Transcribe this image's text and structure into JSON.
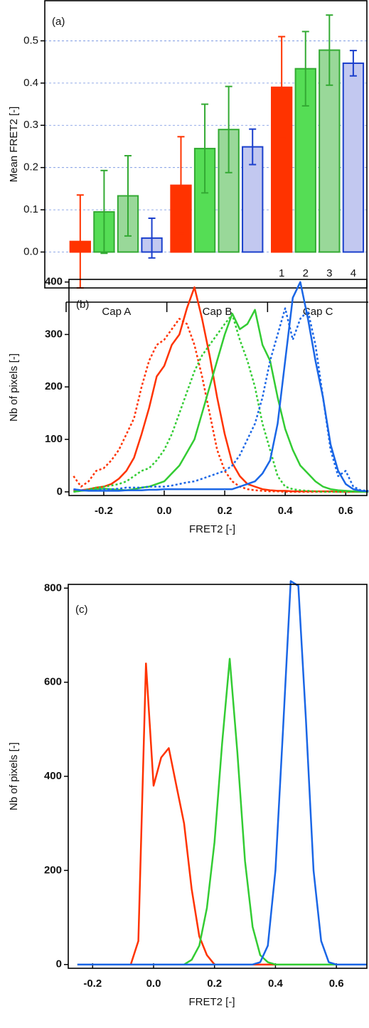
{
  "chart_data": [
    {
      "type": "bar",
      "annotation": "(a)",
      "ylabel": "Mean FRET2 [-]",
      "categories": [
        "Cap A",
        "Cap B",
        "Cap C"
      ],
      "series": [
        {
          "name": "1",
          "color": "#ff3300",
          "edgecolor": "#ff3300",
          "values": [
            0.025,
            0.158,
            0.39
          ],
          "errors": [
            0.11,
            0.115,
            0.12
          ]
        },
        {
          "name": "2",
          "color": "#55dd55",
          "edgecolor": "#33aa33",
          "values": [
            0.095,
            0.245,
            0.434
          ],
          "errors": [
            0.098,
            0.105,
            0.088
          ]
        },
        {
          "name": "3",
          "color": "#99d899",
          "edgecolor": "#33aa33",
          "values": [
            0.133,
            0.29,
            0.478
          ],
          "errors": [
            0.095,
            0.102,
            0.083
          ]
        },
        {
          "name": "4",
          "color": "#c2c8f0",
          "edgecolor": "#1a3fcc",
          "values": [
            0.033,
            0.249,
            0.447
          ],
          "errors": [
            0.047,
            0.042,
            0.03
          ]
        }
      ],
      "ylim": [
        -0.085,
        0.595
      ],
      "yticks": [
        {
          "value": 0,
          "label": "0.0"
        },
        0.1,
        0.2,
        0.3,
        0.4,
        0.5
      ],
      "grid": true
    },
    {
      "type": "line",
      "annotation": "(b)",
      "xlabel": "FRET2 [-]",
      "ylabel": "Nb of pixels [-]",
      "x": [
        -0.3,
        -0.275,
        -0.25,
        -0.225,
        -0.2,
        -0.175,
        -0.15,
        -0.125,
        -0.1,
        -0.075,
        -0.05,
        -0.025,
        0,
        0.025,
        0.05,
        0.075,
        0.1,
        0.125,
        0.15,
        0.175,
        0.2,
        0.225,
        0.25,
        0.275,
        0.3,
        0.325,
        0.35,
        0.375,
        0.4,
        0.425,
        0.45,
        0.475,
        0.5,
        0.525,
        0.55,
        0.575,
        0.6,
        0.625,
        0.65,
        0.675
      ],
      "series": [
        {
          "color": "#ff3300",
          "style": "solid",
          "values": [
            2,
            3,
            5,
            8,
            10,
            15,
            25,
            40,
            65,
            110,
            160,
            220,
            240,
            280,
            300,
            350,
            390,
            330,
            260,
            180,
            110,
            55,
            30,
            15,
            10,
            5,
            3,
            2,
            2,
            1,
            1,
            1,
            1,
            1,
            1,
            0,
            0,
            0,
            0,
            0
          ]
        },
        {
          "color": "#ff3300",
          "style": "dotted",
          "values": [
            30,
            10,
            20,
            40,
            45,
            60,
            80,
            110,
            140,
            200,
            250,
            280,
            290,
            310,
            330,
            320,
            280,
            220,
            150,
            80,
            40,
            20,
            10,
            5,
            3,
            2,
            1,
            1,
            0,
            0,
            0,
            0,
            0,
            0,
            0,
            0,
            0,
            0,
            0,
            0
          ]
        },
        {
          "color": "#33cc33",
          "style": "solid",
          "values": [
            0,
            2,
            3,
            5,
            6,
            5,
            4,
            3,
            5,
            8,
            10,
            15,
            20,
            35,
            50,
            75,
            100,
            150,
            200,
            250,
            300,
            340,
            310,
            320,
            347,
            280,
            250,
            180,
            120,
            80,
            50,
            35,
            20,
            10,
            5,
            3,
            2,
            1,
            0,
            0
          ]
        },
        {
          "color": "#33cc33",
          "style": "dotted",
          "values": [
            0,
            2,
            5,
            8,
            10,
            12,
            15,
            20,
            30,
            40,
            45,
            60,
            80,
            110,
            150,
            190,
            230,
            260,
            280,
            300,
            320,
            338,
            290,
            250,
            200,
            130,
            80,
            30,
            10,
            5,
            3,
            2,
            1,
            0,
            0,
            0,
            0,
            0,
            0,
            0
          ]
        },
        {
          "color": "#1a66e6",
          "style": "solid",
          "values": [
            5,
            3,
            2,
            2,
            2,
            2,
            2,
            3,
            3,
            3,
            4,
            4,
            5,
            5,
            5,
            5,
            5,
            5,
            5,
            5,
            5,
            5,
            10,
            15,
            20,
            35,
            60,
            130,
            250,
            370,
            400,
            330,
            250,
            180,
            90,
            40,
            15,
            5,
            2,
            1
          ]
        },
        {
          "color": "#1a66e6",
          "style": "dotted",
          "values": [
            5,
            3,
            3,
            3,
            5,
            5,
            6,
            8,
            8,
            8,
            10,
            10,
            10,
            12,
            15,
            18,
            20,
            25,
            30,
            35,
            40,
            50,
            70,
            100,
            130,
            180,
            250,
            300,
            350,
            290,
            330,
            345,
            280,
            180,
            80,
            30,
            40,
            10,
            3,
            2
          ]
        }
      ],
      "xlim": [
        -0.315,
        0.67
      ],
      "xticks": [
        -0.2,
        {
          "value": 0,
          "label": "0.0"
        },
        0.2,
        0.4,
        0.6
      ],
      "ylim": [
        -7,
        405
      ],
      "yticks": [
        0,
        100,
        200,
        300,
        400
      ]
    },
    {
      "type": "line",
      "annotation": "(c)",
      "xlabel": "FRET2 [-]",
      "ylabel": "Nb of pixels [-]",
      "x": [
        -0.25,
        -0.225,
        -0.2,
        -0.175,
        -0.15,
        -0.125,
        -0.1,
        -0.075,
        -0.05,
        -0.025,
        0,
        0.025,
        0.05,
        0.075,
        0.1,
        0.125,
        0.15,
        0.175,
        0.2,
        0.225,
        0.25,
        0.275,
        0.3,
        0.325,
        0.35,
        0.375,
        0.4,
        0.425,
        0.45,
        0.475,
        0.5,
        0.525,
        0.55,
        0.575,
        0.6,
        0.625,
        0.65,
        0.675,
        0.7
      ],
      "series": [
        {
          "color": "#ff3300",
          "style": "solid",
          "values": [
            0,
            0,
            0,
            0,
            0,
            0,
            0,
            0,
            50,
            640,
            380,
            440,
            460,
            380,
            300,
            160,
            60,
            20,
            0,
            0,
            0,
            0,
            0,
            0,
            0,
            0,
            0,
            0,
            0,
            0,
            0,
            0,
            0,
            0,
            0,
            0,
            0,
            0,
            0
          ]
        },
        {
          "color": "#33cc33",
          "style": "solid",
          "values": [
            0,
            0,
            0,
            0,
            0,
            0,
            0,
            0,
            0,
            0,
            0,
            0,
            0,
            0,
            0,
            10,
            40,
            120,
            260,
            470,
            650,
            450,
            220,
            80,
            20,
            5,
            0,
            0,
            0,
            0,
            0,
            0,
            0,
            0,
            0,
            0,
            0,
            0,
            0
          ]
        },
        {
          "color": "#1a66e6",
          "style": "solid",
          "values": [
            0,
            0,
            0,
            0,
            0,
            0,
            0,
            0,
            0,
            0,
            0,
            0,
            0,
            0,
            0,
            0,
            0,
            0,
            0,
            0,
            0,
            0,
            0,
            0,
            5,
            40,
            200,
            500,
            815,
            805,
            520,
            200,
            50,
            5,
            0,
            0,
            0,
            0,
            0
          ]
        }
      ],
      "xlim": [
        -0.28,
        0.7
      ],
      "xticks": [
        -0.2,
        {
          "value": 0,
          "label": "0.0"
        },
        0.2,
        0.4,
        0.6
      ],
      "ylim": [
        -8,
        808
      ],
      "yticks": [
        0,
        200,
        400,
        600,
        800
      ]
    }
  ]
}
